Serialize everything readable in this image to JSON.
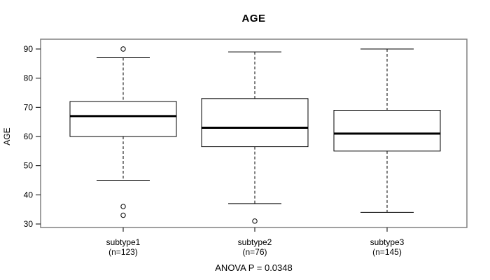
{
  "chart_data": {
    "type": "boxplot",
    "title": "AGE",
    "ylabel": "AGE",
    "xlabel": "",
    "footer": "ANOVA P = 0.0348",
    "yticks": [
      30,
      40,
      50,
      60,
      70,
      80,
      90
    ],
    "ylim": [
      30,
      90
    ],
    "grid": false,
    "legend": "none",
    "groups": [
      {
        "label": "subtype1",
        "sublabel": "(n=123)",
        "n": 123,
        "whisker_low": 45,
        "q1": 60,
        "median": 67,
        "q3": 72,
        "whisker_high": 87,
        "outliers": [
          90,
          36,
          33
        ]
      },
      {
        "label": "subtype2",
        "sublabel": "(n=76)",
        "n": 76,
        "whisker_low": 37,
        "q1": 56.5,
        "median": 63,
        "q3": 73,
        "whisker_high": 89,
        "outliers": [
          31
        ]
      },
      {
        "label": "subtype3",
        "sublabel": "(n=145)",
        "n": 145,
        "whisker_low": 34,
        "q1": 55,
        "median": 61,
        "q3": 69,
        "whisker_high": 90,
        "outliers": []
      }
    ],
    "colors": {
      "background": "#ffffff",
      "plot_border": "#808080",
      "box_stroke": "#000000",
      "median": "#000000",
      "whisker": "#000000",
      "outlier": "#000000",
      "text": "#000000"
    }
  }
}
